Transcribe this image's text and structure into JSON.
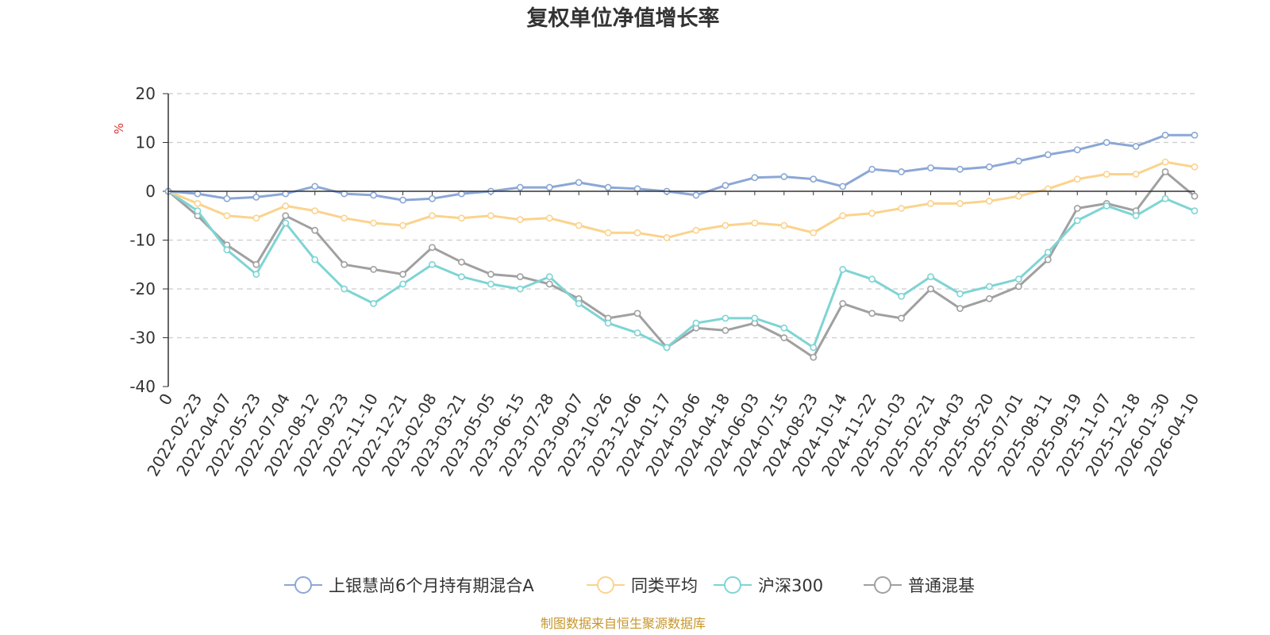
{
  "chart_data": {
    "type": "line",
    "title": "复权单位净值增长率",
    "ylabel": "%",
    "xlabel": "",
    "ylim": [
      -40,
      20
    ],
    "yticks": [
      20,
      10,
      0,
      -10,
      -20,
      -30,
      -40
    ],
    "grid": true,
    "legend_position": "bottom",
    "source": "制图数据来自恒生聚源数据库",
    "x_tick_labels": [
      "0",
      "2022-02-23",
      "2022-04-07",
      "2022-05-23",
      "2022-07-04",
      "2022-08-12",
      "2022-09-23",
      "2022-11-10",
      "2022-12-21",
      "2023-02-08",
      "2023-03-21",
      "2023-05-05",
      "2023-06-15",
      "2023-07-28",
      "2023-09-07",
      "2023-10-26",
      "2023-12-06",
      "2024-01-17",
      "2024-03-06",
      "2024-04-18",
      "2024-06-03",
      "2024-07-15",
      "2024-08-23",
      "2024-10-14",
      "2024-11-22",
      "2025-01-03",
      "2025-02-21",
      "2025-04-03",
      "2025-05-20",
      "2025-07-01",
      "2025-08-11",
      "2025-09-19",
      "2025-11-07",
      "2025-12-18",
      "2026-01-30",
      "2026-04-10"
    ],
    "series": [
      {
        "name": "上银慧尚6个月持有期混合A",
        "color": "#8ba7d6",
        "values": [
          0,
          -0.5,
          -1.5,
          -1.2,
          -0.5,
          1.0,
          -0.5,
          -0.8,
          -1.8,
          -1.5,
          -0.5,
          0,
          0.8,
          0.8,
          1.8,
          0.8,
          0.5,
          0,
          -0.8,
          1.2,
          2.8,
          3.0,
          2.5,
          1.0,
          4.5,
          4.0,
          4.8,
          4.5,
          5.0,
          6.2,
          7.5,
          8.5,
          10.0,
          9.2,
          11.5,
          11.5
        ]
      },
      {
        "name": "同类平均",
        "color": "#fbd38d",
        "values": [
          0,
          -2.5,
          -5.0,
          -5.5,
          -3.0,
          -4.0,
          -5.5,
          -6.5,
          -7.0,
          -5.0,
          -5.5,
          -5.0,
          -5.8,
          -5.5,
          -7.0,
          -8.5,
          -8.5,
          -9.5,
          -8.0,
          -7.0,
          -6.5,
          -7.0,
          -8.5,
          -5.0,
          -4.5,
          -3.5,
          -2.5,
          -2.5,
          -2.0,
          -1.0,
          0.5,
          2.5,
          3.5,
          3.5,
          6.0,
          5.0
        ]
      },
      {
        "name": "沪深300",
        "color": "#7fd4d4",
        "values": [
          0,
          -4.0,
          -12.0,
          -17.0,
          -6.5,
          -14.0,
          -20.0,
          -23.0,
          -19.0,
          -15.0,
          -17.5,
          -19.0,
          -20.0,
          -17.5,
          -23.0,
          -27.0,
          -29.0,
          -32.0,
          -27.0,
          -26.0,
          -26.0,
          -28.0,
          -32.0,
          -16.0,
          -18.0,
          -21.5,
          -17.5,
          -21.0,
          -19.5,
          -18.0,
          -12.5,
          -6.0,
          -3.0,
          -5.0,
          -1.5,
          -4.0
        ]
      },
      {
        "name": "普通混基",
        "color": "#a0a0a0",
        "values": [
          0,
          -5.0,
          -11.0,
          -15.0,
          -5.0,
          -8.0,
          -15.0,
          -16.0,
          -17.0,
          -11.5,
          -14.5,
          -17.0,
          -17.5,
          -19.0,
          -22.0,
          -26.0,
          -25.0,
          -32.0,
          -28.0,
          -28.5,
          -27.0,
          -30.0,
          -34.0,
          -23.0,
          -25.0,
          -26.0,
          -20.0,
          -24.0,
          -22.0,
          -19.5,
          -14.0,
          -3.5,
          -2.5,
          -4.0,
          4.0,
          -1.0
        ]
      }
    ]
  }
}
